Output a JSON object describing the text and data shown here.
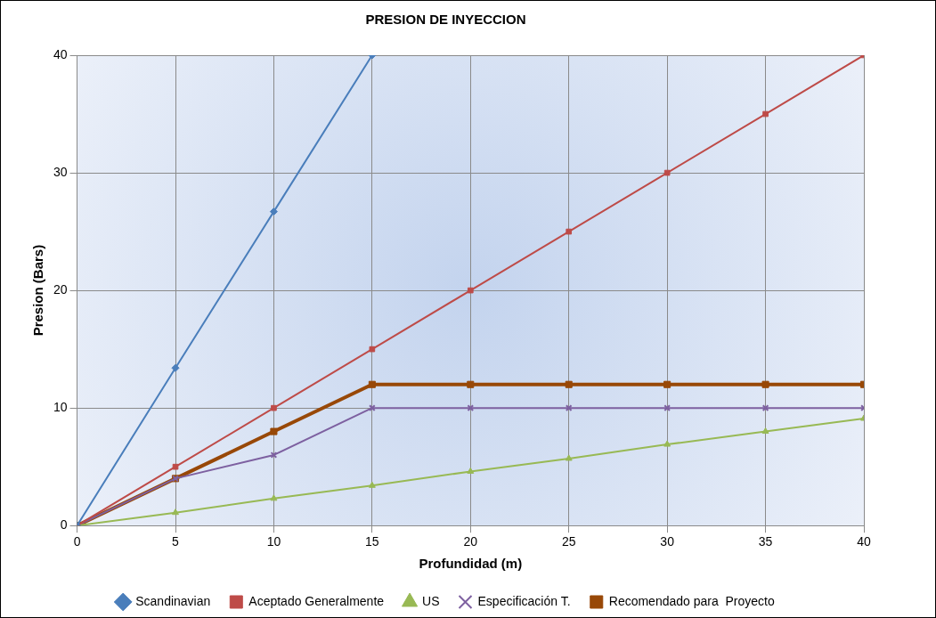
{
  "chart_data": {
    "type": "line",
    "title": "PRESION DE INYECCION",
    "xlabel": "Profundidad (m)",
    "ylabel": "Presion (Bars)",
    "x": [
      0,
      5,
      10,
      15,
      20,
      25,
      30,
      35,
      40
    ],
    "series": [
      {
        "name": "Scandinavian",
        "color": "#4a7ebb",
        "marker": "diamond",
        "x": [
          0,
          5,
          10,
          15
        ],
        "values": [
          0,
          13.4,
          26.7,
          40
        ]
      },
      {
        "name": "Aceptado Generalmente",
        "color": "#be4b48",
        "marker": "square",
        "values": [
          0,
          5,
          10,
          15,
          20,
          25,
          30,
          35,
          40
        ]
      },
      {
        "name": "US",
        "color": "#98b954",
        "marker": "triangle",
        "values": [
          0,
          1.1,
          2.3,
          3.4,
          4.6,
          5.7,
          6.9,
          8,
          9.1
        ]
      },
      {
        "name": "Especificación T.",
        "color": "#7d60a0",
        "marker": "cross",
        "values": [
          0,
          4,
          6,
          10,
          10,
          10,
          10,
          10,
          10
        ]
      },
      {
        "name": "Recomendado para  Proyecto",
        "color": "#984807",
        "marker": "square",
        "values": [
          0,
          4,
          8,
          12,
          12,
          12,
          12,
          12,
          12
        ]
      }
    ],
    "xlim": [
      0,
      40
    ],
    "xticks": [
      0,
      5,
      10,
      15,
      20,
      25,
      30,
      35,
      40
    ],
    "ylim": [
      0,
      40
    ],
    "yticks": [
      0,
      10,
      20,
      30,
      40
    ],
    "grid": true,
    "legend": "bottom",
    "line_style": "solid"
  }
}
